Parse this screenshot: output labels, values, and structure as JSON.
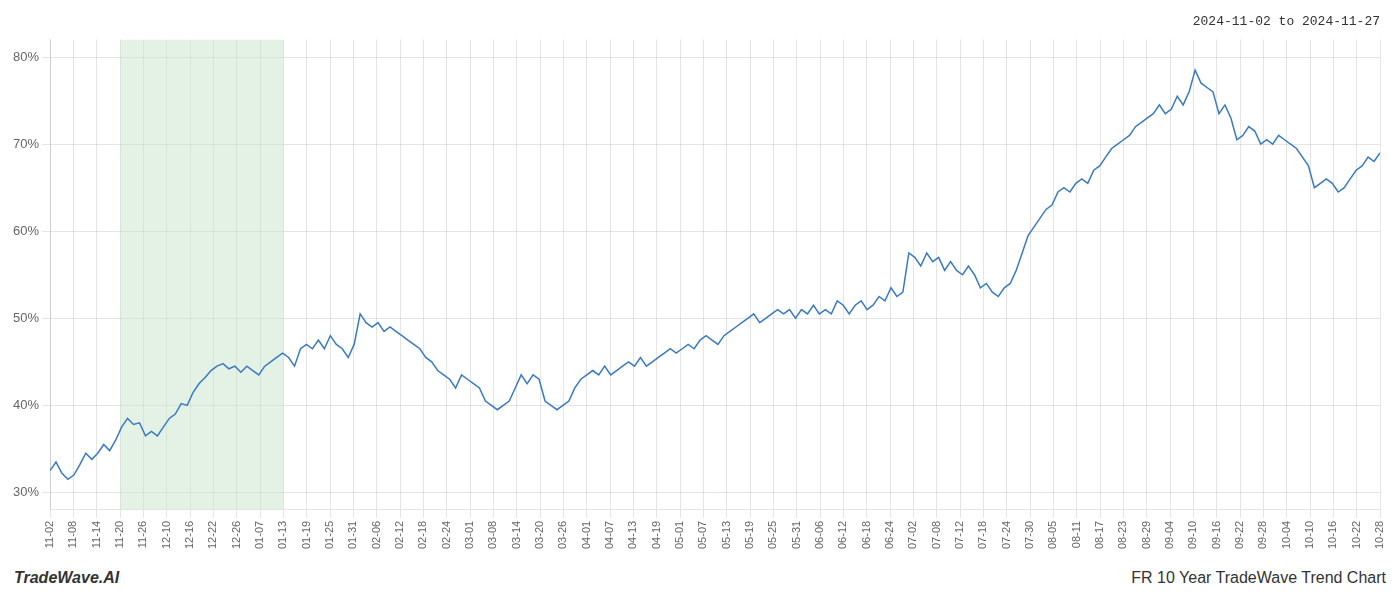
{
  "chart_data": {
    "type": "line",
    "title": "2024-11-02 to 2024-11-27",
    "annotations": [
      "TradeWave.AI",
      "FR 10 Year TradeWave Trend Chart"
    ],
    "color": "#3a7abf",
    "grid": true,
    "highlight": {
      "from": 3,
      "to": 10,
      "color": "#c8e6c9"
    },
    "xlim": [
      0,
      57
    ],
    "xticks": [
      {
        "value": 0,
        "label": "11-02"
      },
      {
        "value": 1,
        "label": "11-08"
      },
      {
        "value": 2,
        "label": "11-14"
      },
      {
        "value": 3,
        "label": "11-20"
      },
      {
        "value": 4,
        "label": "11-26"
      },
      {
        "value": 5,
        "label": "12-10"
      },
      {
        "value": 6,
        "label": "12-16"
      },
      {
        "value": 7,
        "label": "12-22"
      },
      {
        "value": 8,
        "label": "12-26"
      },
      {
        "value": 9,
        "label": "01-07"
      },
      {
        "value": 10,
        "label": "01-13"
      },
      {
        "value": 11,
        "label": "01-19"
      },
      {
        "value": 12,
        "label": "01-25"
      },
      {
        "value": 13,
        "label": "01-31"
      },
      {
        "value": 14,
        "label": "02-06"
      },
      {
        "value": 15,
        "label": "02-12"
      },
      {
        "value": 16,
        "label": "02-18"
      },
      {
        "value": 17,
        "label": "02-24"
      },
      {
        "value": 18,
        "label": "03-01"
      },
      {
        "value": 19,
        "label": "03-08"
      },
      {
        "value": 20,
        "label": "03-14"
      },
      {
        "value": 21,
        "label": "03-20"
      },
      {
        "value": 22,
        "label": "03-26"
      },
      {
        "value": 23,
        "label": "04-01"
      },
      {
        "value": 24,
        "label": "04-07"
      },
      {
        "value": 25,
        "label": "04-13"
      },
      {
        "value": 26,
        "label": "04-19"
      },
      {
        "value": 27,
        "label": "05-01"
      },
      {
        "value": 28,
        "label": "05-07"
      },
      {
        "value": 29,
        "label": "05-13"
      },
      {
        "value": 30,
        "label": "05-19"
      },
      {
        "value": 31,
        "label": "05-25"
      },
      {
        "value": 32,
        "label": "05-31"
      },
      {
        "value": 33,
        "label": "06-06"
      },
      {
        "value": 34,
        "label": "06-12"
      },
      {
        "value": 35,
        "label": "06-18"
      },
      {
        "value": 36,
        "label": "06-24"
      },
      {
        "value": 37,
        "label": "07-02"
      },
      {
        "value": 38,
        "label": "07-08"
      },
      {
        "value": 39,
        "label": "07-12"
      },
      {
        "value": 40,
        "label": "07-18"
      },
      {
        "value": 41,
        "label": "07-24"
      },
      {
        "value": 42,
        "label": "07-30"
      },
      {
        "value": 43,
        "label": "08-05"
      },
      {
        "value": 44,
        "label": "08-11"
      },
      {
        "value": 45,
        "label": "08-17"
      },
      {
        "value": 46,
        "label": "08-23"
      },
      {
        "value": 47,
        "label": "08-29"
      },
      {
        "value": 48,
        "label": "09-04"
      },
      {
        "value": 49,
        "label": "09-10"
      },
      {
        "value": 50,
        "label": "09-16"
      },
      {
        "value": 51,
        "label": "09-22"
      },
      {
        "value": 52,
        "label": "09-28"
      },
      {
        "value": 53,
        "label": "10-04"
      },
      {
        "value": 54,
        "label": "10-10"
      },
      {
        "value": 55,
        "label": "10-16"
      },
      {
        "value": 56,
        "label": "10-22"
      },
      {
        "value": 57,
        "label": "10-28"
      }
    ],
    "ylim": [
      28,
      82
    ],
    "yticks": [
      {
        "value": 30,
        "label": "30%"
      },
      {
        "value": 40,
        "label": "40%"
      },
      {
        "value": 50,
        "label": "50%"
      },
      {
        "value": 60,
        "label": "60%"
      },
      {
        "value": 70,
        "label": "70%"
      },
      {
        "value": 80,
        "label": "80%"
      }
    ],
    "values": [
      32.5,
      33.5,
      32.2,
      31.5,
      32.0,
      33.2,
      34.5,
      33.8,
      34.5,
      35.5,
      34.8,
      36.0,
      37.5,
      38.5,
      37.8,
      38.0,
      36.5,
      37.0,
      36.5,
      37.5,
      38.5,
      39.0,
      40.2,
      40.0,
      41.5,
      42.5,
      43.2,
      44.0,
      44.5,
      44.8,
      44.2,
      44.5,
      43.8,
      44.5,
      44.0,
      43.5,
      44.5,
      45.0,
      45.5,
      46.0,
      45.5,
      44.5,
      46.5,
      47.0,
      46.5,
      47.5,
      46.5,
      48.0,
      47.0,
      46.5,
      45.5,
      47.0,
      50.5,
      49.5,
      49.0,
      49.5,
      48.5,
      49.0,
      48.5,
      48.0,
      47.5,
      47.0,
      46.5,
      45.5,
      45.0,
      44.0,
      43.5,
      43.0,
      42.0,
      43.5,
      43.0,
      42.5,
      42.0,
      40.5,
      40.0,
      39.5,
      40.0,
      40.5,
      42.0,
      43.5,
      42.5,
      43.5,
      43.0,
      40.5,
      40.0,
      39.5,
      40.0,
      40.5,
      42.0,
      43.0,
      43.5,
      44.0,
      43.5,
      44.5,
      43.5,
      44.0,
      44.5,
      45.0,
      44.5,
      45.5,
      44.5,
      45.0,
      45.5,
      46.0,
      46.5,
      46.0,
      46.5,
      47.0,
      46.5,
      47.5,
      48.0,
      47.5,
      47.0,
      48.0,
      48.5,
      49.0,
      49.5,
      50.0,
      50.5,
      49.5,
      50.0,
      50.5,
      51.0,
      50.5,
      51.0,
      50.0,
      51.0,
      50.5,
      51.5,
      50.5,
      51.0,
      50.5,
      52.0,
      51.5,
      50.5,
      51.5,
      52.0,
      51.0,
      51.5,
      52.5,
      52.0,
      53.5,
      52.5,
      53.0,
      57.5,
      57.0,
      56.0,
      57.5,
      56.5,
      57.0,
      55.5,
      56.5,
      55.5,
      55.0,
      56.0,
      55.0,
      53.5,
      54.0,
      53.0,
      52.5,
      53.5,
      54.0,
      55.5,
      57.5,
      59.5,
      60.5,
      61.5,
      62.5,
      63.0,
      64.5,
      65.0,
      64.5,
      65.5,
      66.0,
      65.5,
      67.0,
      67.5,
      68.5,
      69.5,
      70.0,
      70.5,
      71.0,
      72.0,
      72.5,
      73.0,
      73.5,
      74.5,
      73.5,
      74.0,
      75.5,
      74.5,
      76.0,
      78.5,
      77.0,
      76.5,
      76.0,
      73.5,
      74.5,
      73.0,
      70.5,
      71.0,
      72.0,
      71.5,
      70.0,
      70.5,
      70.0,
      71.0,
      70.5,
      70.0,
      69.5,
      68.5,
      67.5,
      65.0,
      65.5,
      66.0,
      65.5,
      64.5,
      65.0,
      66.0,
      67.0,
      67.5,
      68.5,
      68.0,
      69.0
    ]
  }
}
